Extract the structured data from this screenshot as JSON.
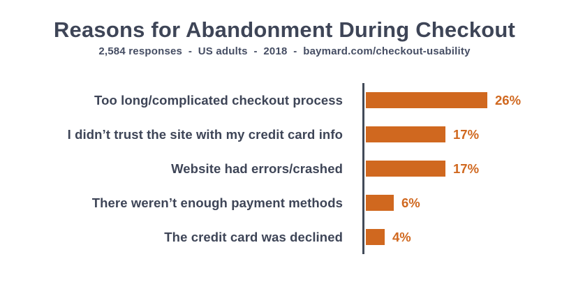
{
  "header": {
    "title": "Reasons for Abandonment During Checkout",
    "subtitle": "2,584 responses  -  US adults  -  2018  -  baymard.com/checkout-usability"
  },
  "source": {
    "responses": "2,584 responses",
    "population": "US adults",
    "year": "2018",
    "url_text": "baymard.com/checkout-usability"
  },
  "colors": {
    "bar": "#d0681f",
    "value_label": "#d0681f",
    "title_text": "#3e4557",
    "category_label_text": "#3e4557",
    "axis_line": "#424a58",
    "background": "#ffffff"
  },
  "chart_data": {
    "type": "bar",
    "orientation": "horizontal",
    "title": "Reasons for Abandonment During Checkout",
    "subtitle": "2,584 responses - US adults - 2018 - baymard.com/checkout-usability",
    "unit": "%",
    "categories": [
      "Too long/complicated checkout process",
      "I didn’t trust the site with my credit card info",
      "Website had errors/crashed",
      "There weren’t enough payment methods",
      "The credit card was declined"
    ],
    "values": [
      26,
      17,
      17,
      6,
      4
    ],
    "value_labels": [
      "26%",
      "17%",
      "17%",
      "6%",
      "4%"
    ],
    "xlim": [
      0,
      26
    ],
    "grid": false,
    "legend": false,
    "value_labels_position": "end-of-bar"
  }
}
